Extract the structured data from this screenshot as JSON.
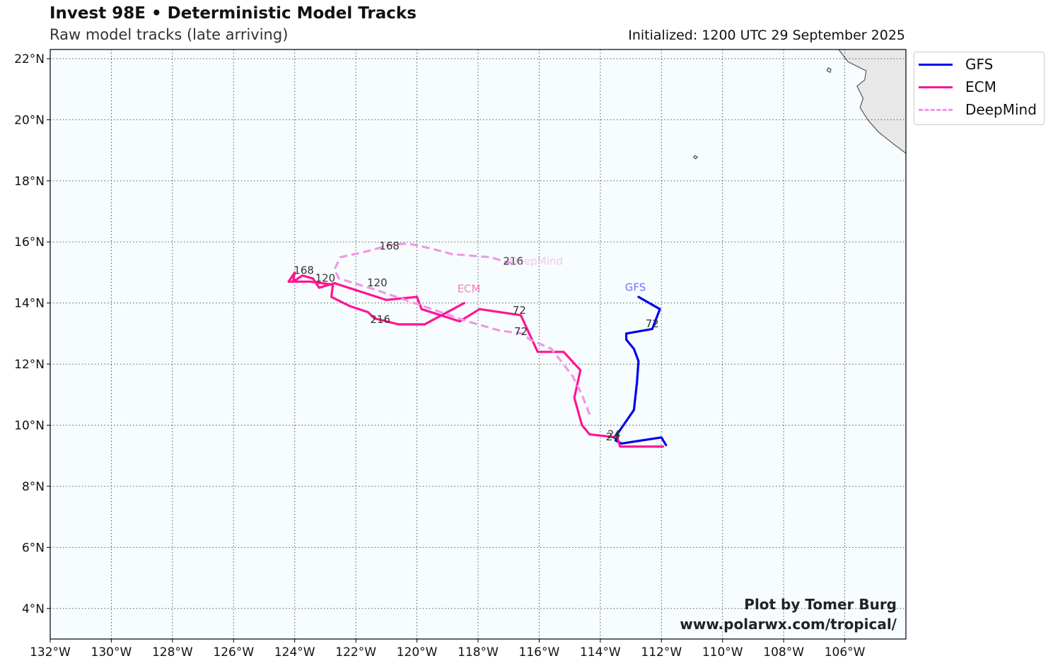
{
  "header": {
    "title": "Invest 98E • Deterministic Model Tracks",
    "subtitle": "Raw model tracks (late arriving)",
    "initialized": "Initialized: 1200 UTC 29 September 2025"
  },
  "map": {
    "lon_range": [
      -132,
      -104
    ],
    "lat_range": [
      3,
      22.3
    ],
    "grid": true,
    "background_color": "#f7fdfe",
    "land_color": "#e8e8e8",
    "lon_ticks": [
      {
        "value": -132,
        "label": "132°W"
      },
      {
        "value": -130,
        "label": "130°W"
      },
      {
        "value": -128,
        "label": "128°W"
      },
      {
        "value": -126,
        "label": "126°W"
      },
      {
        "value": -124,
        "label": "124°W"
      },
      {
        "value": -122,
        "label": "122°W"
      },
      {
        "value": -120,
        "label": "120°W"
      },
      {
        "value": -118,
        "label": "118°W"
      },
      {
        "value": -116,
        "label": "116°W"
      },
      {
        "value": -114,
        "label": "114°W"
      },
      {
        "value": -112,
        "label": "112°W"
      },
      {
        "value": -110,
        "label": "110°W"
      },
      {
        "value": -108,
        "label": "108°W"
      },
      {
        "value": -106,
        "label": "106°W"
      }
    ],
    "lat_ticks": [
      {
        "value": 4,
        "label": "4°N"
      },
      {
        "value": 6,
        "label": "6°N"
      },
      {
        "value": 8,
        "label": "8°N"
      },
      {
        "value": 10,
        "label": "10°N"
      },
      {
        "value": 12,
        "label": "12°N"
      },
      {
        "value": 14,
        "label": "14°N"
      },
      {
        "value": 16,
        "label": "16°N"
      },
      {
        "value": 18,
        "label": "18°N"
      },
      {
        "value": 20,
        "label": "20°N"
      },
      {
        "value": 22,
        "label": "22°N"
      }
    ],
    "coastline": [
      [
        -106.2,
        22.3
      ],
      [
        -105.9,
        21.9
      ],
      [
        -105.3,
        21.6
      ],
      [
        -105.35,
        21.3
      ],
      [
        -105.6,
        21.1
      ],
      [
        -105.4,
        20.7
      ],
      [
        -105.5,
        20.4
      ],
      [
        -105.25,
        20.0
      ],
      [
        -104.9,
        19.6
      ],
      [
        -104.4,
        19.2
      ],
      [
        -104.0,
        18.9
      ]
    ],
    "islands": [
      {
        "name": "Isla Socorro area",
        "points": [
          [
            -106.55,
            21.7
          ],
          [
            -106.45,
            21.65
          ],
          [
            -106.48,
            21.55
          ],
          [
            -106.58,
            21.6
          ]
        ]
      },
      {
        "name": "Isla San Benedicto area",
        "points": [
          [
            -110.9,
            18.83
          ],
          [
            -110.82,
            18.78
          ],
          [
            -110.88,
            18.72
          ],
          [
            -110.95,
            18.77
          ]
        ]
      }
    ]
  },
  "tracks": [
    {
      "model": "GFS",
      "color": "#0000ee",
      "dash": false,
      "points": [
        [
          -111.85,
          9.35
        ],
        [
          -112.0,
          9.6
        ],
        [
          -113.3,
          9.4
        ],
        [
          -113.5,
          9.5
        ],
        [
          -113.45,
          9.7
        ],
        [
          -112.9,
          10.5
        ],
        [
          -112.8,
          11.4
        ],
        [
          -112.75,
          12.1
        ],
        [
          -112.9,
          12.5
        ],
        [
          -113.15,
          12.8
        ],
        [
          -113.15,
          13.0
        ],
        [
          -112.3,
          13.15
        ],
        [
          -112.05,
          13.8
        ],
        [
          -112.75,
          14.2
        ]
      ],
      "hour_labels": [
        {
          "text": "24",
          "lon": -113.55,
          "lat": 9.58
        },
        {
          "text": "72",
          "lon": -112.3,
          "lat": 13.2
        }
      ],
      "end_label": {
        "text": "GFS",
        "lon": -112.85,
        "lat": 14.4
      }
    },
    {
      "model": "ECM",
      "color": "#ff1493",
      "dash": false,
      "points": [
        [
          -111.95,
          9.3
        ],
        [
          -113.35,
          9.3
        ],
        [
          -113.45,
          9.6
        ],
        [
          -114.35,
          9.7
        ],
        [
          -114.6,
          10.0
        ],
        [
          -114.85,
          10.9
        ],
        [
          -114.65,
          11.8
        ],
        [
          -115.2,
          12.4
        ],
        [
          -116.05,
          12.4
        ],
        [
          -116.6,
          13.6
        ],
        [
          -117.95,
          13.8
        ],
        [
          -118.6,
          13.4
        ],
        [
          -119.85,
          13.8
        ],
        [
          -120.0,
          14.2
        ],
        [
          -121.0,
          14.1
        ],
        [
          -122.7,
          14.65
        ],
        [
          -123.2,
          14.5
        ],
        [
          -123.4,
          14.8
        ],
        [
          -123.75,
          14.9
        ],
        [
          -124.05,
          14.7
        ],
        [
          -124.0,
          15.0
        ],
        [
          -124.2,
          14.7
        ],
        [
          -123.5,
          14.7
        ],
        [
          -122.75,
          14.6
        ],
        [
          -122.8,
          14.2
        ],
        [
          -122.2,
          13.9
        ],
        [
          -121.6,
          13.7
        ],
        [
          -121.4,
          13.5
        ],
        [
          -121.0,
          13.4
        ],
        [
          -120.6,
          13.3
        ],
        [
          -119.75,
          13.3
        ],
        [
          -118.45,
          14.0
        ]
      ],
      "hour_labels": [
        {
          "text": "24",
          "lon": -113.6,
          "lat": 9.5
        },
        {
          "text": "72",
          "lon": -116.65,
          "lat": 13.65
        },
        {
          "text": "120",
          "lon": -123.0,
          "lat": 14.7
        },
        {
          "text": "168",
          "lon": -123.7,
          "lat": 14.95
        },
        {
          "text": "216",
          "lon": -121.2,
          "lat": 13.35
        }
      ],
      "end_label": {
        "text": "ECM",
        "lon": -118.3,
        "lat": 14.35
      }
    },
    {
      "model": "DeepMind",
      "color": "#ee99e6",
      "dash": true,
      "points": [
        [
          -114.35,
          10.35
        ],
        [
          -114.6,
          11.0
        ],
        [
          -114.9,
          11.6
        ],
        [
          -115.6,
          12.5
        ],
        [
          -116.3,
          12.8
        ],
        [
          -116.55,
          13.0
        ],
        [
          -117.3,
          13.1
        ],
        [
          -118.35,
          13.4
        ],
        [
          -119.8,
          13.9
        ],
        [
          -121.4,
          14.45
        ],
        [
          -122.55,
          14.8
        ],
        [
          -122.7,
          15.1
        ],
        [
          -122.5,
          15.5
        ],
        [
          -121.6,
          15.7
        ],
        [
          -120.9,
          15.9
        ],
        [
          -120.3,
          15.95
        ],
        [
          -119.6,
          15.8
        ],
        [
          -118.85,
          15.6
        ],
        [
          -117.6,
          15.5
        ],
        [
          -117.1,
          15.35
        ],
        [
          -116.85,
          15.3
        ]
      ],
      "hour_labels": [
        {
          "text": "72",
          "lon": -116.6,
          "lat": 12.95
        },
        {
          "text": "120",
          "lon": -121.3,
          "lat": 14.55
        },
        {
          "text": "168",
          "lon": -120.9,
          "lat": 15.75
        },
        {
          "text": "216",
          "lon": -116.85,
          "lat": 15.25
        }
      ],
      "end_label": {
        "text": "DeepMind",
        "lon": -116.1,
        "lat": 15.25
      }
    }
  ],
  "legend": {
    "items": [
      {
        "label": "GFS",
        "color": "#0000ee",
        "dash": false
      },
      {
        "label": "ECM",
        "color": "#ff1493",
        "dash": false
      },
      {
        "label": "DeepMind",
        "color": "#ee99e6",
        "dash": true
      }
    ]
  },
  "credits": {
    "line1": "Plot by Tomer Burg",
    "line2": "www.polarwx.com/tropical/"
  }
}
